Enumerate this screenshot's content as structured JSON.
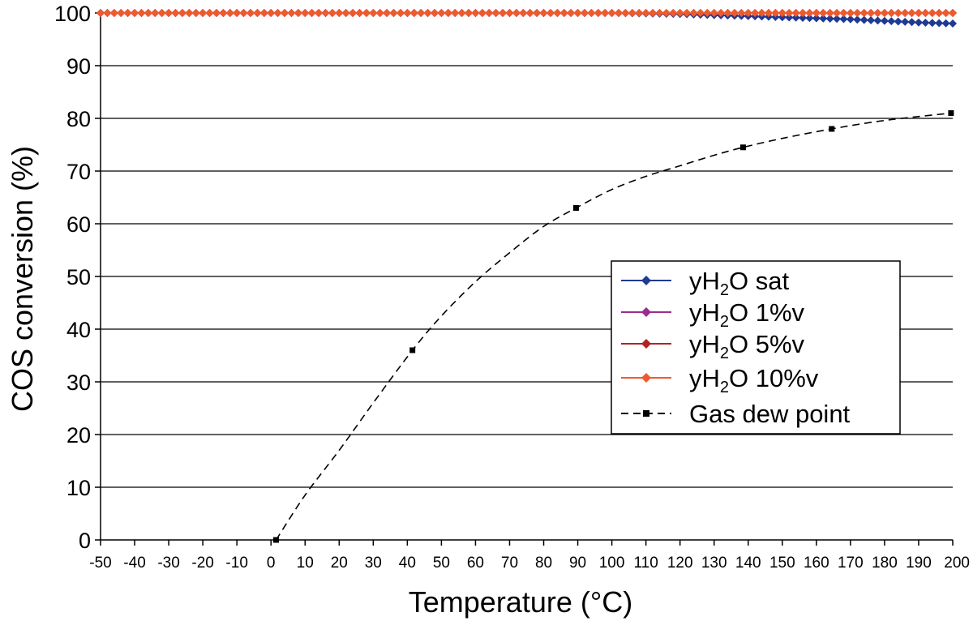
{
  "chart_data": {
    "type": "line",
    "xlabel": "Temperature (°C)",
    "ylabel": "COS conversion (%)",
    "xlim": [
      -50,
      200
    ],
    "ylim": [
      0,
      100
    ],
    "x_ticks": [
      -50,
      -40,
      -30,
      -20,
      -10,
      0,
      10,
      20,
      30,
      40,
      50,
      60,
      70,
      80,
      90,
      100,
      110,
      120,
      130,
      140,
      150,
      160,
      170,
      180,
      190,
      200
    ],
    "y_ticks": [
      0,
      10,
      20,
      30,
      40,
      50,
      60,
      70,
      80,
      90,
      100
    ],
    "grid": "horizontal",
    "legend_position": "center-right",
    "series": [
      {
        "name": "yH2O sat",
        "label_parts": [
          "yH",
          "2",
          "O sat"
        ],
        "color": "#1f3a93",
        "marker": "diamond",
        "line_style": "solid",
        "points": [
          [
            -50,
            100
          ],
          [
            0,
            100
          ],
          [
            50,
            100
          ],
          [
            100,
            100
          ],
          [
            110,
            99.9
          ],
          [
            120,
            99.8
          ],
          [
            130,
            99.6
          ],
          [
            140,
            99.4
          ],
          [
            150,
            99.2
          ],
          [
            160,
            99.0
          ],
          [
            170,
            98.8
          ],
          [
            180,
            98.5
          ],
          [
            190,
            98.2
          ],
          [
            200,
            98.0
          ]
        ]
      },
      {
        "name": "yH2O 1%v",
        "label_parts": [
          "yH",
          "2",
          "O 1%v"
        ],
        "color": "#9b2c8f",
        "marker": "diamond",
        "line_style": "solid",
        "points": [
          [
            -50,
            100
          ],
          [
            50,
            100
          ],
          [
            100,
            100
          ],
          [
            150,
            100
          ],
          [
            200,
            100
          ]
        ]
      },
      {
        "name": "yH2O 5%v",
        "label_parts": [
          "yH",
          "2",
          "O 5%v"
        ],
        "color": "#b22222",
        "marker": "diamond",
        "line_style": "solid",
        "points": [
          [
            -50,
            100
          ],
          [
            50,
            100
          ],
          [
            100,
            100
          ],
          [
            150,
            100
          ],
          [
            200,
            100
          ]
        ]
      },
      {
        "name": "yH2O 10%v",
        "label_parts": [
          "yH",
          "2",
          "O 10%v"
        ],
        "color": "#ef5a2c",
        "marker": "diamond",
        "line_style": "solid",
        "points": [
          [
            -50,
            100
          ],
          [
            0,
            100
          ],
          [
            50,
            100
          ],
          [
            100,
            100
          ],
          [
            150,
            100
          ],
          [
            200,
            100
          ]
        ]
      },
      {
        "name": "Gas dew point",
        "label_parts": [
          "Gas dew point",
          "",
          ""
        ],
        "color": "#000000",
        "marker": "square",
        "line_style": "dashed",
        "points": [
          [
            1.5,
            0
          ],
          [
            41.5,
            36
          ],
          [
            89.5,
            63
          ],
          [
            138.5,
            74.5
          ],
          [
            164.5,
            78
          ],
          [
            199.5,
            81
          ]
        ],
        "curve_points": [
          [
            1.5,
            0
          ],
          [
            10,
            8.5
          ],
          [
            20,
            17
          ],
          [
            30,
            26
          ],
          [
            41.5,
            36
          ],
          [
            50,
            42.5
          ],
          [
            60,
            49
          ],
          [
            70,
            54.5
          ],
          [
            80,
            59.5
          ],
          [
            89.5,
            63
          ],
          [
            100,
            66.5
          ],
          [
            110,
            69
          ],
          [
            120,
            71
          ],
          [
            130,
            73
          ],
          [
            138.5,
            74.5
          ],
          [
            150,
            76.2
          ],
          [
            164.5,
            78
          ],
          [
            180,
            79.6
          ],
          [
            199.5,
            81
          ]
        ]
      }
    ]
  }
}
